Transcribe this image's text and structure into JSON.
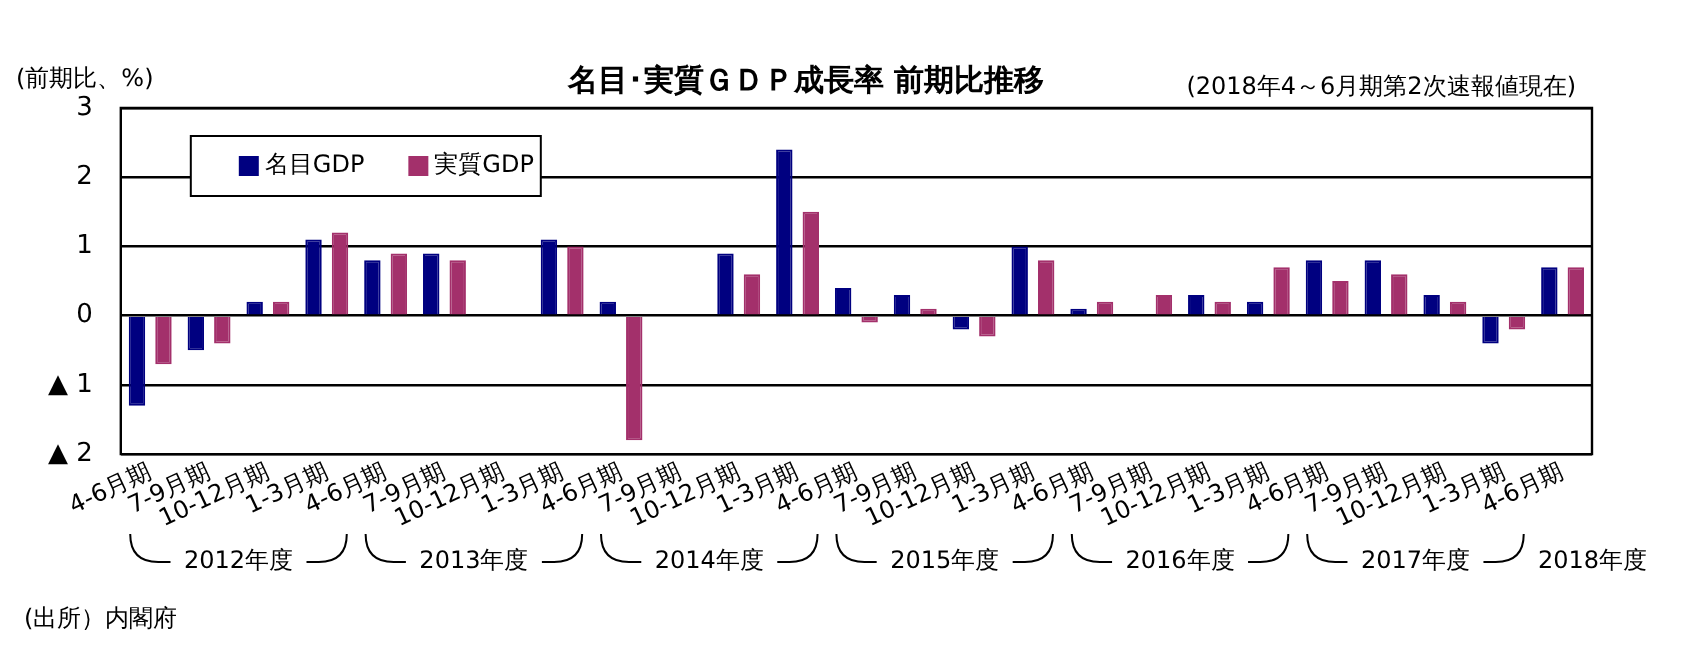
{
  "chart_data": {
    "type": "bar",
    "title": "名目･実質ＧＤＰ成長率 前期比推移",
    "subtitle": "(2018年4～6月期第2次速報値現在)",
    "ylabel": "(前期比、%)",
    "categories": [
      "4-6月期",
      "7-9月期",
      "10-12月期",
      "1-3月期",
      "4-6月期",
      "7-9月期",
      "10-12月期",
      "1-3月期",
      "4-6月期",
      "7-9月期",
      "10-12月期",
      "1-3月期",
      "4-6月期",
      "7-9月期",
      "10-12月期",
      "1-3月期",
      "4-6月期",
      "7-9月期",
      "10-12月期",
      "1-3月期",
      "4-6月期",
      "7-9月期",
      "10-12月期",
      "1-3月期",
      "4-6月期"
    ],
    "series": [
      {
        "name": "名目GDP",
        "color": "#000080",
        "values": [
          -1.3,
          -0.5,
          0.2,
          1.1,
          0.8,
          0.9,
          0,
          1.1,
          0.2,
          0,
          0.9,
          2.4,
          0.4,
          0.3,
          -0.2,
          1.0,
          0.1,
          0,
          0.3,
          0.2,
          0.8,
          0.8,
          0.3,
          -0.4,
          0.7
        ]
      },
      {
        "name": "実質GDP",
        "color": "#a3306b",
        "values": [
          -0.7,
          -0.4,
          0.2,
          1.2,
          0.9,
          0.8,
          0,
          1.0,
          -1.8,
          0,
          0.6,
          1.5,
          -0.1,
          0.1,
          -0.3,
          0.8,
          0.2,
          0.3,
          0.2,
          0.7,
          0.5,
          0.6,
          0.2,
          -0.2,
          0.7
        ]
      }
    ],
    "ylim": [
      -2,
      3
    ],
    "yticks": [
      {
        "value": -2,
        "label": "▲ 2"
      },
      {
        "value": -1,
        "label": "▲ 1"
      },
      0,
      1,
      2,
      3
    ],
    "grid": "y",
    "legend": "top left",
    "annotations": [
      "2012年度",
      "2013年度",
      "2014年度",
      "2015年度",
      "2016年度",
      "2017年度",
      "2018年度",
      "(出所）内閣府"
    ]
  }
}
